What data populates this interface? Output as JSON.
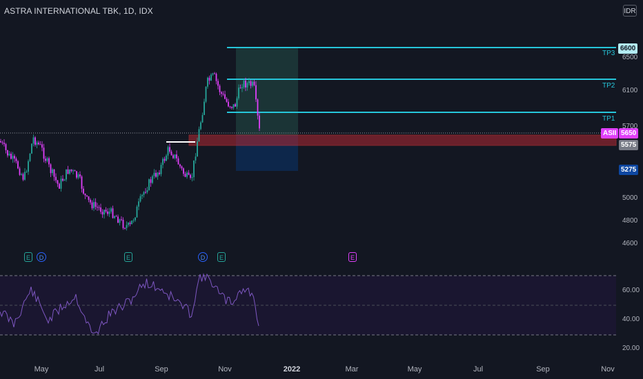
{
  "header": {
    "title": "ASTRA INTERNATIONAL TBK, 1D, IDX",
    "currency": "IDR"
  },
  "price_axis": {
    "ticks": [
      "6500",
      "6100",
      "5700",
      "5000",
      "4800",
      "4600"
    ]
  },
  "rsi_axis": {
    "ticks": [
      "60.00",
      "40.00",
      "20.00"
    ]
  },
  "time_axis": {
    "ticks": [
      "May",
      "Jul",
      "Sep",
      "Nov",
      "2022",
      "Mar",
      "May",
      "Jul",
      "Sep",
      "Nov"
    ]
  },
  "targets": {
    "tp3_label": "TP3",
    "tp2_label": "TP2",
    "tp1_label": "TP1"
  },
  "price_tags": {
    "tp3_price": "6600",
    "symbol": "ASII",
    "last_price": "5650",
    "zone_price": "5575",
    "stop_price": "5275"
  },
  "events": [
    "E",
    "D",
    "E",
    "D",
    "E",
    "E"
  ],
  "colors": {
    "background": "#131722",
    "up": "#26a69a",
    "down": "#e040fb",
    "target_line": "#26c6da",
    "zone": "#b22833",
    "rsi_line": "#7e57c2",
    "stop_tag": "#0d47a1"
  }
}
